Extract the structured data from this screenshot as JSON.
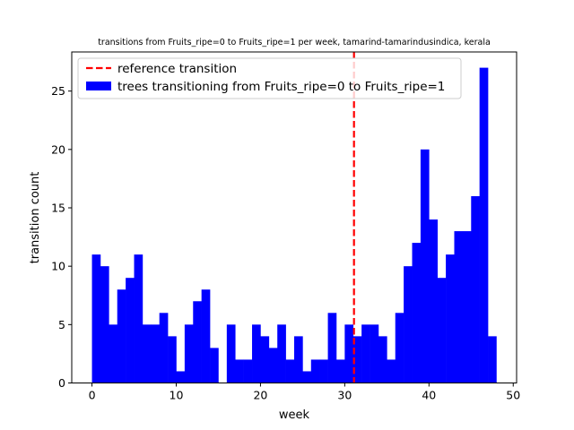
{
  "chart_data": {
    "type": "bar",
    "title": "transitions from Fruits_ripe=0 to Fruits_ripe=1 per week, tamarind-tamarindusindica, kerala",
    "xlabel": "week",
    "ylabel": "transition count",
    "xlim": [
      -2.4,
      50.4
    ],
    "ylim": [
      0,
      28.35
    ],
    "xticks": [
      0,
      10,
      20,
      30,
      40,
      50
    ],
    "yticks": [
      0,
      5,
      10,
      15,
      20,
      25
    ],
    "grid": false,
    "legend_position": "top-left",
    "reference_line": {
      "label": "reference transition",
      "x": 31.1,
      "color": "#ff0000",
      "style": "dashed"
    },
    "series": [
      {
        "name": "trees transitioning from Fruits_ripe=0 to Fruits_ripe=1",
        "color": "#0000ff",
        "bin_width": 1,
        "x": [
          0,
          1,
          2,
          3,
          4,
          5,
          6,
          7,
          8,
          9,
          10,
          11,
          12,
          13,
          14,
          15,
          16,
          17,
          18,
          19,
          20,
          21,
          22,
          23,
          24,
          25,
          26,
          27,
          28,
          29,
          30,
          31,
          32,
          33,
          34,
          35,
          36,
          37,
          38,
          39,
          40,
          41,
          42,
          43,
          44,
          45,
          46,
          47
        ],
        "values": [
          11,
          10,
          5,
          8,
          9,
          11,
          5,
          5,
          6,
          4,
          1,
          5,
          7,
          8,
          3,
          0,
          5,
          2,
          2,
          5,
          4,
          3,
          5,
          2,
          4,
          1,
          2,
          2,
          6,
          2,
          5,
          4,
          5,
          5,
          4,
          2,
          6,
          10,
          12,
          20,
          14,
          9,
          11,
          13,
          13,
          16,
          27,
          4
        ]
      }
    ]
  }
}
